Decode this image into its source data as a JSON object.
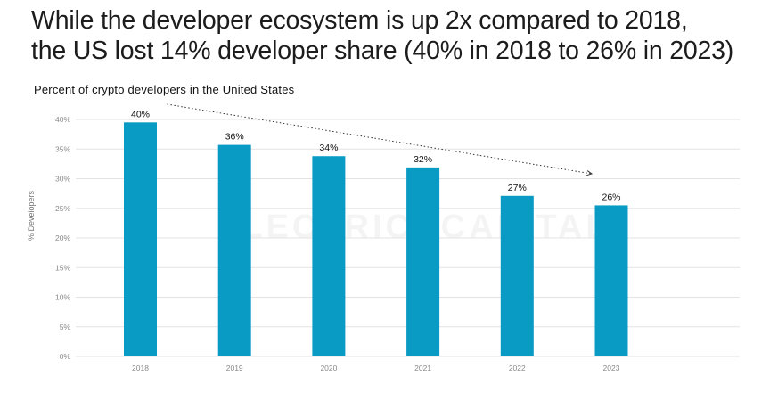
{
  "title_line1": "While the developer ecosystem is up 2x compared to 2018,",
  "title_line2": "the US lost 14% developer share (40% in 2018 to 26% in 2023)",
  "watermark": "ELECTRIC⚡CAPITAL",
  "colors": {
    "bar": "#0a9bc4",
    "grid": "#e3e3e3",
    "axis_text": "#8a8a8a"
  },
  "chart_data": {
    "type": "bar",
    "title": "Percent of crypto developers in the United States",
    "xlabel": "",
    "ylabel": "% Developers",
    "categories": [
      "2018",
      "2019",
      "2020",
      "2021",
      "2022",
      "2023"
    ],
    "values": [
      39.5,
      35.7,
      33.8,
      31.9,
      27.1,
      25.5
    ],
    "data_labels": [
      "40%",
      "36%",
      "34%",
      "32%",
      "27%",
      "26%"
    ],
    "ylim": [
      0,
      40
    ],
    "yticks": [
      0,
      5,
      10,
      15,
      20,
      25,
      30,
      35,
      40
    ],
    "ytick_labels": [
      "0%",
      "5%",
      "10%",
      "15%",
      "20%",
      "25%",
      "30%",
      "35%",
      "40%"
    ],
    "grid": true,
    "trend_arrow": {
      "from": "2018",
      "to": "2023",
      "style": "dotted"
    }
  }
}
